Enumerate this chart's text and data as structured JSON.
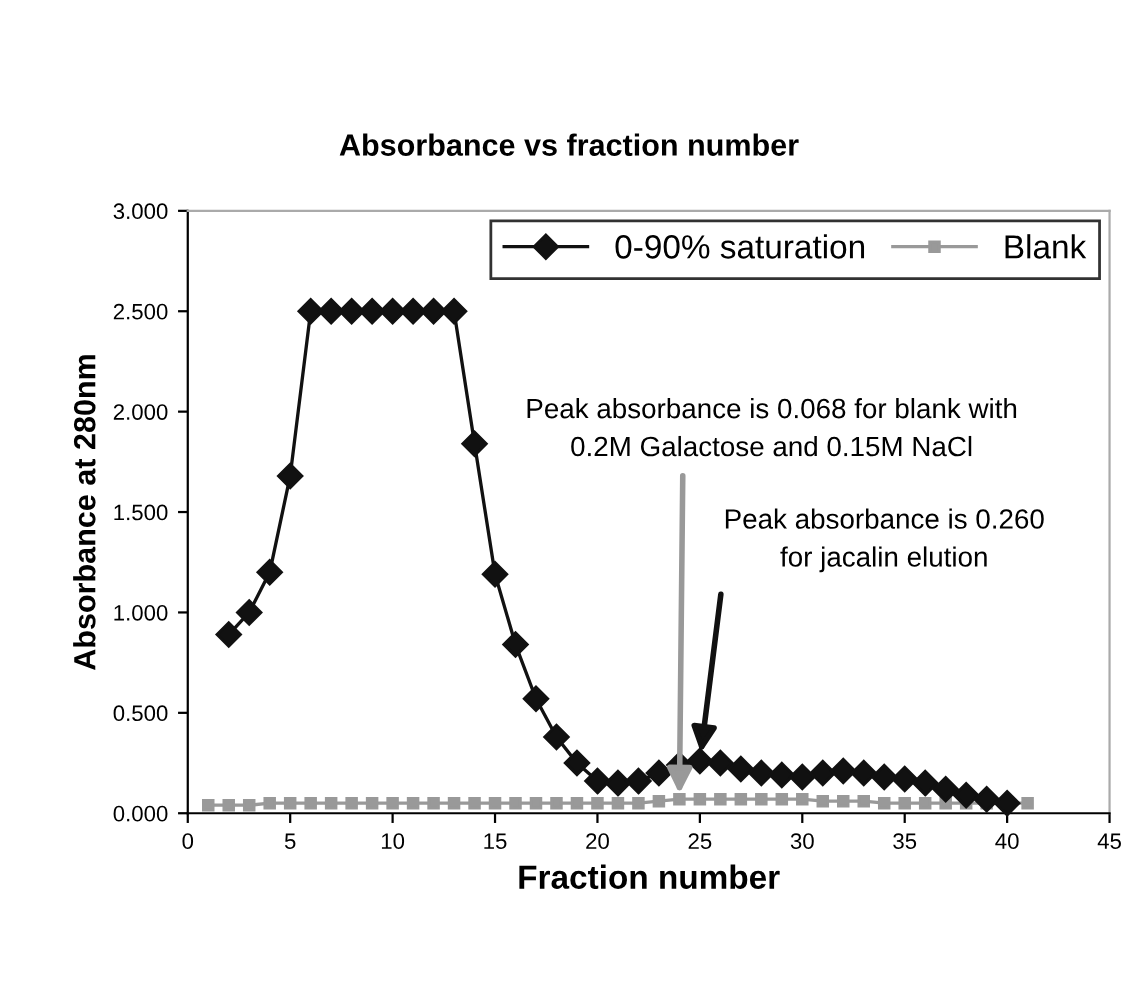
{
  "chart_data": {
    "type": "line",
    "title": "Absorbance vs fraction number",
    "xlabel": "Fraction number",
    "ylabel": "Absorbance at 280nm",
    "xlim": [
      0,
      45
    ],
    "xticks": [
      0,
      5,
      10,
      15,
      20,
      25,
      30,
      35,
      40,
      45
    ],
    "ylim": [
      0,
      3
    ],
    "yticks": [
      {
        "value": 0,
        "label": "0.000"
      },
      {
        "value": 0.5,
        "label": "0.500"
      },
      {
        "value": 1,
        "label": "1.000"
      },
      {
        "value": 1.5,
        "label": "1.500"
      },
      {
        "value": 2,
        "label": "2.000"
      },
      {
        "value": 2.5,
        "label": "2.500"
      },
      {
        "value": 3,
        "label": "3.000"
      }
    ],
    "grid": false,
    "legend": "top right",
    "series": [
      {
        "name": "0-90% saturation",
        "color": "#111111",
        "marker": "diamond",
        "x": [
          2,
          3,
          4,
          5,
          6,
          7,
          8,
          9,
          10,
          11,
          12,
          13,
          14,
          15,
          16,
          17,
          18,
          19,
          20,
          21,
          22,
          23,
          24,
          25,
          26,
          27,
          28,
          29,
          30,
          31,
          32,
          33,
          34,
          35,
          36,
          37,
          38,
          39,
          40
        ],
        "values": [
          0.89,
          1.0,
          1.2,
          1.68,
          2.5,
          2.5,
          2.5,
          2.5,
          2.5,
          2.5,
          2.5,
          2.5,
          1.84,
          1.19,
          0.84,
          0.57,
          0.38,
          0.25,
          0.16,
          0.15,
          0.16,
          0.2,
          0.24,
          0.26,
          0.25,
          0.22,
          0.2,
          0.19,
          0.18,
          0.2,
          0.21,
          0.2,
          0.18,
          0.17,
          0.15,
          0.12,
          0.09,
          0.07,
          0.05
        ]
      },
      {
        "name": "Blank",
        "color": "#999999",
        "marker": "square",
        "x": [
          1,
          2,
          3,
          4,
          5,
          6,
          7,
          8,
          9,
          10,
          11,
          12,
          13,
          14,
          15,
          16,
          17,
          18,
          19,
          20,
          21,
          22,
          23,
          24,
          25,
          26,
          27,
          28,
          29,
          30,
          31,
          32,
          33,
          34,
          35,
          36,
          37,
          38,
          39,
          40,
          41
        ],
        "values": [
          0.04,
          0.04,
          0.04,
          0.05,
          0.05,
          0.05,
          0.05,
          0.05,
          0.05,
          0.05,
          0.05,
          0.05,
          0.05,
          0.05,
          0.05,
          0.05,
          0.05,
          0.05,
          0.05,
          0.05,
          0.05,
          0.05,
          0.06,
          0.07,
          0.07,
          0.07,
          0.07,
          0.07,
          0.07,
          0.07,
          0.06,
          0.06,
          0.06,
          0.05,
          0.05,
          0.05,
          0.05,
          0.05,
          0.05,
          0.05,
          0.05
        ]
      }
    ],
    "annotations": [
      {
        "text": "Peak absorbance is 0.068 for blank with\n0.2M Galactose and 0.15M NaCl",
        "x": 24,
        "y": 0.07
      },
      {
        "text": "Peak absorbance is 0.260\nfor jacalin elution",
        "x": 25,
        "y": 0.26
      }
    ]
  }
}
